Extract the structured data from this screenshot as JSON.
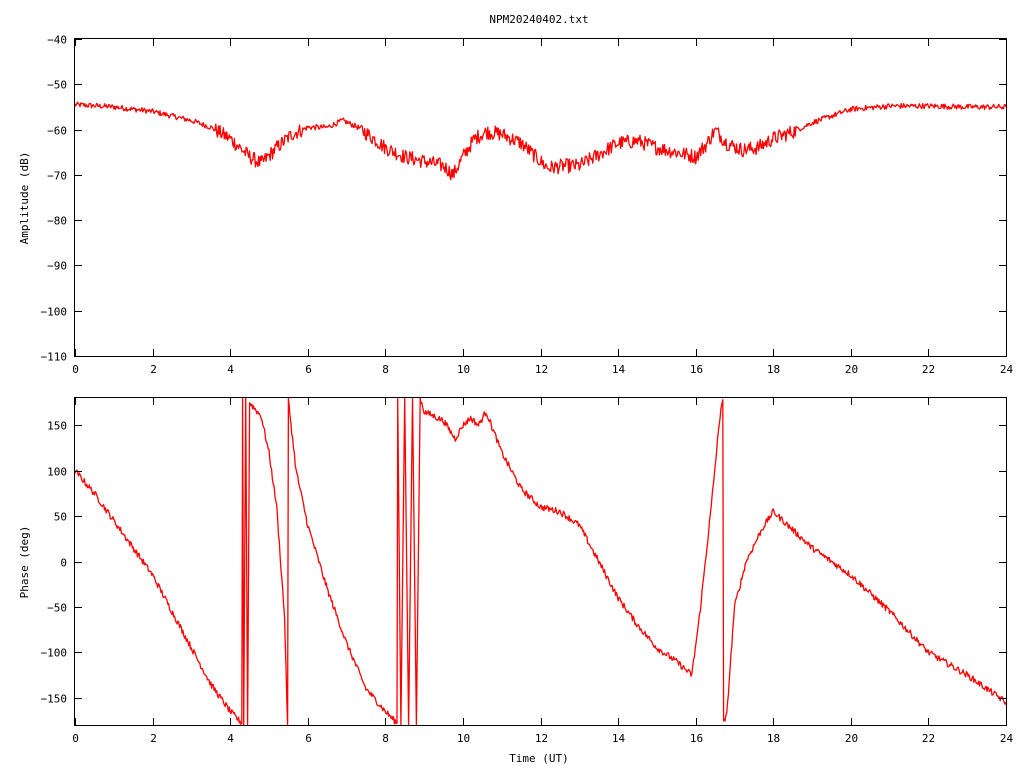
{
  "title": "NPM20240402.txt",
  "colors": {
    "trace": "#ff0000",
    "axes": "#000000",
    "background": "#ffffff"
  },
  "chart_data": [
    {
      "type": "line",
      "title": "NPM20240402.txt",
      "xlabel": "",
      "ylabel": "Amplitude (dB)",
      "xlim": [
        0,
        24
      ],
      "ylim": [
        -110,
        -40
      ],
      "xticks": [
        0,
        2,
        4,
        6,
        8,
        10,
        12,
        14,
        16,
        18,
        20,
        22,
        24
      ],
      "yticks": [
        -110,
        -100,
        -90,
        -80,
        -70,
        -60,
        -50,
        -40
      ],
      "grid": false,
      "series": [
        {
          "x": [
            0,
            1,
            2,
            3,
            3.5,
            4,
            4.5,
            4.8,
            5.2,
            5.6,
            6,
            6.5,
            6.9,
            7.3,
            7.7,
            8,
            8.5,
            9,
            9.5,
            9.75,
            10,
            10.3,
            10.6,
            11,
            11.5,
            12,
            12.2,
            12.6,
            13,
            13.5,
            14,
            14.5,
            15,
            15.5,
            16,
            16.3,
            16.5,
            16.8,
            17.2,
            17.6,
            18,
            18.5,
            19,
            20,
            21,
            22,
            23,
            24
          ],
          "y": [
            -54.5,
            -55,
            -56,
            -58,
            -59.5,
            -62,
            -66,
            -67.5,
            -64,
            -61,
            -59.5,
            -59.5,
            -58,
            -59.5,
            -62,
            -64,
            -66,
            -67,
            -68,
            -70,
            -66,
            -62,
            -60.5,
            -61,
            -63,
            -67,
            -68.5,
            -68,
            -68,
            -65.5,
            -63,
            -62.5,
            -64,
            -65,
            -66,
            -63,
            -60,
            -63,
            -64.5,
            -64,
            -62,
            -60.5,
            -58.5,
            -55.5,
            -54.8,
            -54.8,
            -55,
            -55
          ]
        }
      ]
    },
    {
      "type": "line",
      "title": "",
      "xlabel": "Time (UT)",
      "ylabel": "Phase (deg)",
      "xlim": [
        0,
        24
      ],
      "ylim": [
        -180,
        180
      ],
      "xticks": [
        0,
        2,
        4,
        6,
        8,
        10,
        12,
        14,
        16,
        18,
        20,
        22,
        24
      ],
      "yticks": [
        -150,
        -100,
        -50,
        0,
        50,
        100,
        150
      ],
      "grid": false,
      "series": [
        {
          "x": [
            0,
            0.5,
            1,
            1.5,
            2,
            2.5,
            3,
            3.5,
            4,
            4.3,
            4.32,
            4.35,
            4.4,
            4.45,
            4.5,
            4.6,
            4.8,
            5,
            5.2,
            5.4,
            5.48,
            5.5,
            5.52,
            5.7,
            6,
            6.5,
            7,
            7.5,
            8,
            8.3,
            8.32,
            8.4,
            8.5,
            8.6,
            8.7,
            8.8,
            8.9,
            9,
            9.5,
            9.8,
            10,
            10.2,
            10.4,
            10.6,
            11,
            11.5,
            12,
            12.5,
            13,
            13.5,
            14,
            14.5,
            15,
            15.5,
            15.9,
            16.1,
            16.4,
            16.65,
            16.7,
            16.72,
            16.8,
            17,
            17.3,
            17.7,
            18,
            18.5,
            19,
            20,
            21,
            22,
            23,
            24
          ],
          "y": [
            100,
            75,
            45,
            15,
            -15,
            -55,
            -95,
            -135,
            -165,
            -178,
            180,
            -180,
            180,
            -180,
            175,
            170,
            160,
            120,
            60,
            -60,
            -180,
            180,
            170,
            100,
            40,
            -30,
            -90,
            -140,
            -165,
            -178,
            180,
            -180,
            180,
            -180,
            180,
            -180,
            180,
            165,
            155,
            135,
            150,
            158,
            150,
            165,
            120,
            80,
            60,
            55,
            40,
            0,
            -40,
            -70,
            -95,
            -110,
            -125,
            -60,
            60,
            170,
            178,
            -178,
            -170,
            -50,
            0,
            35,
            55,
            35,
            15,
            -15,
            -55,
            -100,
            -125,
            -155
          ]
        }
      ]
    }
  ]
}
